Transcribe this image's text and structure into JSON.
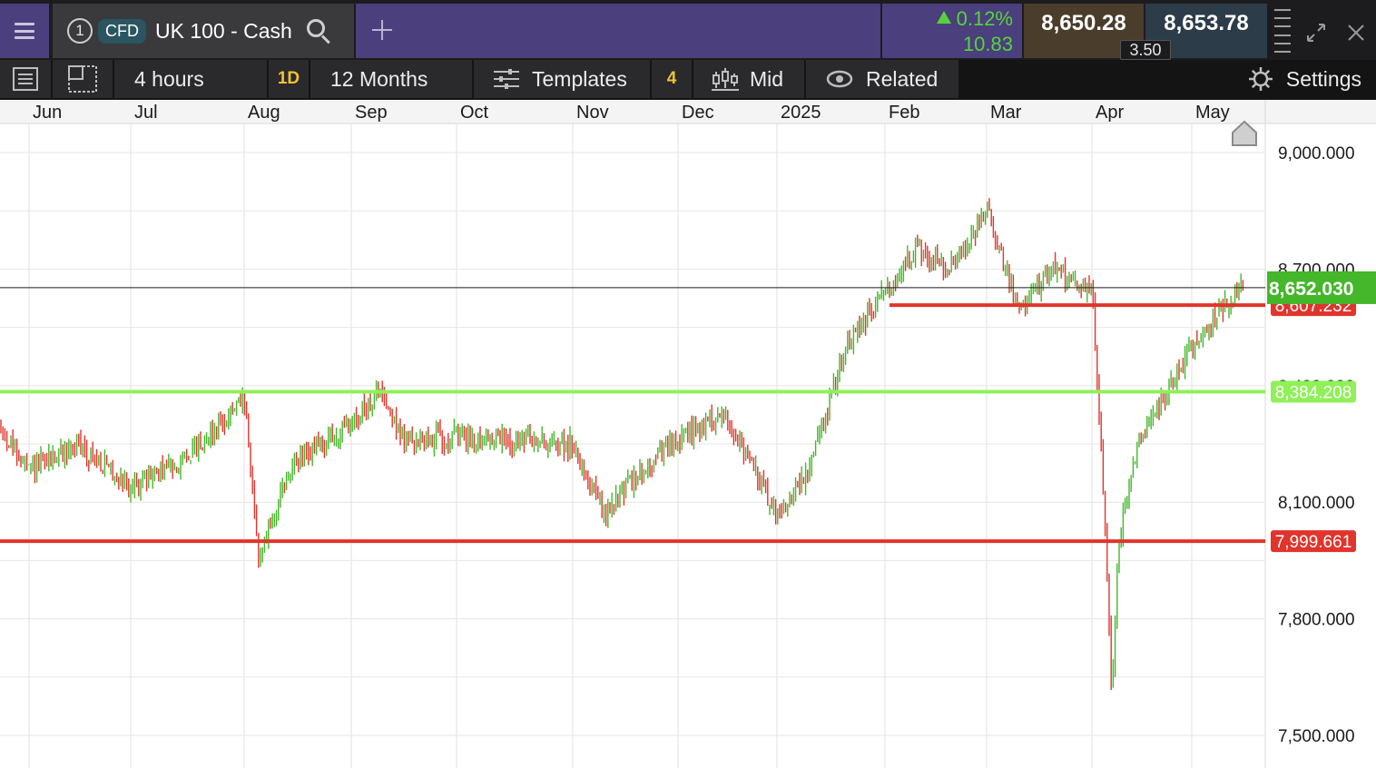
{
  "header": {
    "tab_number": "1",
    "instrument_type": "CFD",
    "instrument_name": "UK 100 - Cash",
    "change_percent": "0.12%",
    "change_points": "10.83",
    "sell_price": "8,650.28",
    "buy_price": "8,653.78",
    "spread": "3.50"
  },
  "toolbar": {
    "timeframe": "4 hours",
    "interval_badge": "1D",
    "range": "12 Months",
    "templates": "Templates",
    "indicator_count": "4",
    "price_type": "Mid",
    "related": "Related",
    "settings": "Settings"
  },
  "icons": [
    "menu-icon",
    "search-icon",
    "add-tab-icon",
    "expand-icon",
    "close-icon",
    "list-icon",
    "layout-icon",
    "sliders-icon",
    "candlestick-icon",
    "eye-icon",
    "gear-icon",
    "home-icon"
  ],
  "colors": {
    "up": "#44b72a",
    "down": "#e0342c",
    "support_line": "#e0342c",
    "green_line": "#8ff058",
    "current_price": "#44b72a",
    "header_purple": "#4b3f7d"
  },
  "chart_data": {
    "type": "candlestick",
    "x_tick_labels": [
      "Jun",
      "Jul",
      "Aug",
      "Sep",
      "Oct",
      "Nov",
      "Dec",
      "2025",
      "Feb",
      "Mar",
      "Apr",
      "May"
    ],
    "y_tick_labels": [
      "9,000.000",
      "8,700.000",
      "8,400.000",
      "8,100.000",
      "7,800.000",
      "7,500.000"
    ],
    "y_ticks": [
      9000,
      8700,
      8400,
      8100,
      7800,
      7500
    ],
    "ylim": [
      7460,
      9070
    ],
    "current_price": {
      "value": 8652.03,
      "label": "8,652.030"
    },
    "horizontal_lines": [
      {
        "value": 8607.232,
        "label": "8,607.232",
        "color": "#e0342c",
        "start_month": "Feb"
      },
      {
        "value": 8384.208,
        "label": "8,384.208",
        "color": "#8ff058",
        "start_month": "Jun"
      },
      {
        "value": 7999.661,
        "label": "7,999.661",
        "color": "#e0342c",
        "start_month": "Jun"
      }
    ],
    "series": [
      {
        "name": "UK 100 - Cash",
        "x": [
          "May-20",
          "Jun-01",
          "Jun-15",
          "Jul-01",
          "Jul-15",
          "Aug-01",
          "Aug-05",
          "Aug-15",
          "Sep-01",
          "Sep-10",
          "Sep-15",
          "Oct-01",
          "Oct-15",
          "Nov-01",
          "Nov-10",
          "Nov-15",
          "Dec-01",
          "Dec-15",
          "Jan-01",
          "Jan-10",
          "Jan-20",
          "Feb-01",
          "Feb-10",
          "Feb-20",
          "Mar-01",
          "Mar-10",
          "Mar-20",
          "Apr-01",
          "Apr-04",
          "Apr-07",
          "Apr-09",
          "Apr-15",
          "May-01",
          "May-10",
          "May-15"
        ],
        "close": [
          8290,
          8180,
          8250,
          8140,
          8210,
          8360,
          7960,
          8200,
          8300,
          8390,
          8260,
          8270,
          8260,
          8250,
          8070,
          8130,
          8260,
          8330,
          8070,
          8180,
          8500,
          8640,
          8750,
          8700,
          8850,
          8600,
          8700,
          8650,
          8200,
          7600,
          8000,
          8250,
          8500,
          8600,
          8650
        ]
      }
    ]
  }
}
